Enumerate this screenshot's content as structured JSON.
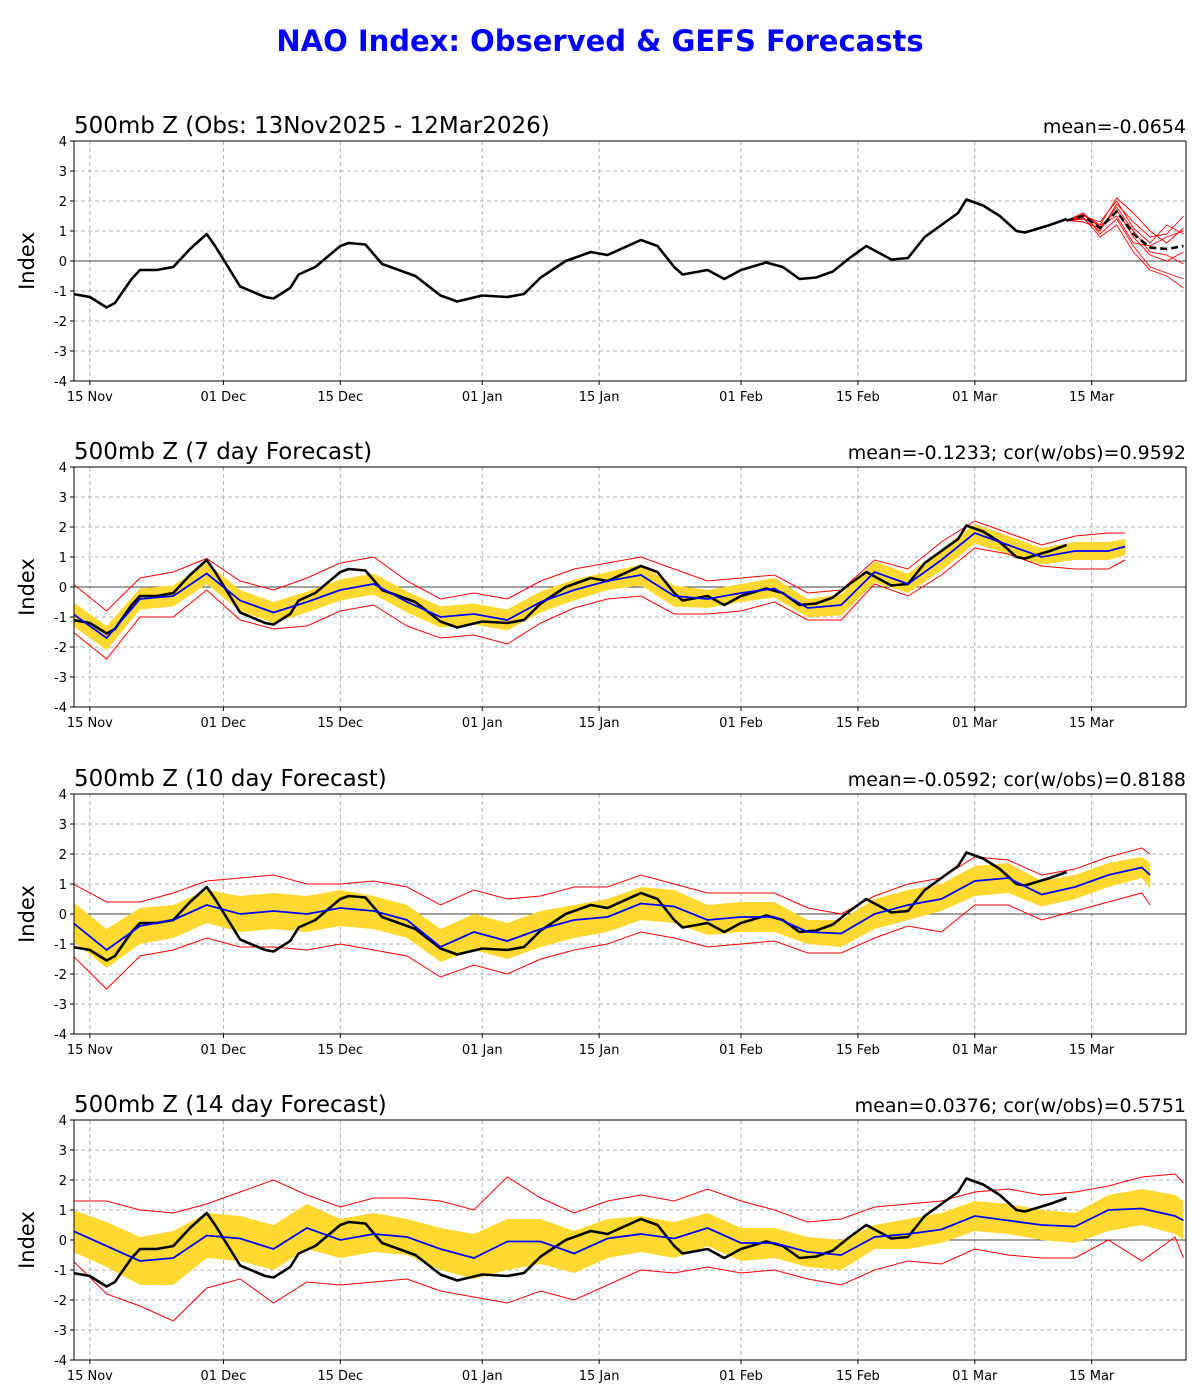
{
  "chart_data": {
    "type": "line",
    "title": "NAO Index: Observed & GEFS Forecasts",
    "colors": {
      "title": "#0000ff",
      "observed": "#000000",
      "forecast_mean": "#0000ff",
      "spread_band": "#ffd92f",
      "min_max": "#ff0000",
      "ensemble": "#ff0000"
    },
    "x_ticks": [
      "15 Nov",
      "01 Dec",
      "15 Dec",
      "01 Jan",
      "15 Jan",
      "01 Feb",
      "15 Feb",
      "01 Mar",
      "15 Mar"
    ],
    "x_tick_dates": [
      "2025-11-15",
      "2025-12-01",
      "2025-12-15",
      "2026-01-01",
      "2026-01-15",
      "2026-02-01",
      "2026-02-15",
      "2026-03-01",
      "2026-03-15"
    ],
    "xlim": [
      "2025-11-13",
      "2026-03-26"
    ],
    "ylim": [
      -4,
      4
    ],
    "y_ticks": [
      -4,
      -3,
      -2,
      -1,
      0,
      1,
      2,
      3,
      4
    ],
    "ylabel": "Index",
    "grid": true,
    "observed": {
      "dates": [
        "2025-11-13",
        "2025-11-15",
        "2025-11-17",
        "2025-11-18",
        "2025-11-20",
        "2025-11-21",
        "2025-11-23",
        "2025-11-25",
        "2025-11-27",
        "2025-11-29",
        "2025-11-30",
        "2025-12-02",
        "2025-12-03",
        "2025-12-06",
        "2025-12-07",
        "2025-12-09",
        "2025-12-10",
        "2025-12-12",
        "2025-12-15",
        "2025-12-16",
        "2025-12-18",
        "2025-12-20",
        "2025-12-22",
        "2025-12-24",
        "2025-12-27",
        "2025-12-29",
        "2026-01-01",
        "2026-01-04",
        "2026-01-06",
        "2026-01-08",
        "2026-01-11",
        "2026-01-14",
        "2026-01-16",
        "2026-01-20",
        "2026-01-22",
        "2026-01-24",
        "2026-01-25",
        "2026-01-28",
        "2026-01-30",
        "2026-02-01",
        "2026-02-04",
        "2026-02-06",
        "2026-02-08",
        "2026-02-10",
        "2026-02-12",
        "2026-02-14",
        "2026-02-16",
        "2026-02-19",
        "2026-02-21",
        "2026-02-23",
        "2026-02-25",
        "2026-02-27",
        "2026-02-28",
        "2026-03-02",
        "2026-03-04",
        "2026-03-06",
        "2026-03-07",
        "2026-03-10",
        "2026-03-12"
      ],
      "values": [
        -1.1,
        -1.2,
        -1.55,
        -1.4,
        -0.6,
        -0.3,
        -0.3,
        -0.2,
        0.4,
        0.9,
        0.5,
        -0.4,
        -0.85,
        -1.2,
        -1.25,
        -0.9,
        -0.45,
        -0.2,
        0.5,
        0.6,
        0.55,
        -0.1,
        -0.3,
        -0.5,
        -1.15,
        -1.35,
        -1.15,
        -1.2,
        -1.1,
        -0.55,
        0.0,
        0.3,
        0.2,
        0.7,
        0.5,
        -0.2,
        -0.45,
        -0.3,
        -0.6,
        -0.3,
        -0.05,
        -0.2,
        -0.6,
        -0.55,
        -0.35,
        0.1,
        0.5,
        0.05,
        0.1,
        0.8,
        1.2,
        1.6,
        2.05,
        1.85,
        1.5,
        1.0,
        0.95,
        1.2,
        1.4
      ]
    },
    "panels": [
      {
        "title": "500mb Z (Obs: 13Nov2025 - 12Mar2026)",
        "stat": "mean=-0.0654",
        "ensemble": {
          "dates": [
            "2026-03-12",
            "2026-03-14",
            "2026-03-16",
            "2026-03-18",
            "2026-03-20",
            "2026-03-22",
            "2026-03-24",
            "2026-03-26"
          ],
          "mean": [
            1.35,
            1.5,
            1.1,
            1.65,
            0.9,
            0.45,
            0.4,
            0.5
          ],
          "members": [
            [
              1.35,
              1.4,
              1.0,
              1.9,
              1.3,
              0.8,
              0.9,
              1.5
            ],
            [
              1.35,
              1.55,
              1.2,
              2.1,
              1.6,
              1.0,
              0.6,
              1.1
            ],
            [
              1.35,
              1.6,
              0.9,
              1.4,
              0.5,
              -0.2,
              -0.4,
              -0.6
            ],
            [
              1.35,
              1.3,
              1.1,
              1.7,
              0.8,
              0.2,
              0.0,
              0.3
            ],
            [
              1.35,
              1.5,
              1.3,
              2.0,
              1.1,
              0.6,
              1.2,
              0.9
            ],
            [
              1.35,
              1.45,
              0.8,
              1.2,
              0.3,
              -0.3,
              -0.5,
              -0.9
            ],
            [
              1.35,
              1.6,
              1.1,
              1.8,
              1.0,
              0.3,
              0.2,
              -0.1
            ],
            [
              1.35,
              1.4,
              1.2,
              1.5,
              0.6,
              0.5,
              0.8,
              1.0
            ]
          ]
        }
      },
      {
        "title": "500mb Z (7 day Forecast)",
        "stat": "mean=-0.1233; cor(w/obs)=0.9592",
        "forecast": {
          "dates": [
            "2025-11-13",
            "2025-11-17",
            "2025-11-21",
            "2025-11-25",
            "2025-11-29",
            "2025-12-03",
            "2025-12-07",
            "2025-12-11",
            "2025-12-15",
            "2025-12-19",
            "2025-12-23",
            "2025-12-27",
            "2025-12-31",
            "2026-01-04",
            "2026-01-08",
            "2026-01-12",
            "2026-01-16",
            "2026-01-20",
            "2026-01-24",
            "2026-01-28",
            "2026-02-01",
            "2026-02-05",
            "2026-02-09",
            "2026-02-13",
            "2026-02-17",
            "2026-02-21",
            "2026-02-25",
            "2026-03-01",
            "2026-03-05",
            "2026-03-09",
            "2026-03-13",
            "2026-03-17",
            "2026-03-19"
          ],
          "mean": [
            -0.9,
            -1.7,
            -0.4,
            -0.3,
            0.45,
            -0.45,
            -0.85,
            -0.5,
            -0.1,
            0.1,
            -0.5,
            -1.0,
            -0.9,
            -1.1,
            -0.5,
            -0.1,
            0.2,
            0.4,
            -0.3,
            -0.4,
            -0.2,
            -0.05,
            -0.7,
            -0.6,
            0.5,
            0.1,
            0.9,
            1.8,
            1.4,
            1.0,
            1.2,
            1.2,
            1.35
          ],
          "band_lo": [
            -1.3,
            -2.1,
            -0.75,
            -0.65,
            0.1,
            -0.8,
            -1.2,
            -0.85,
            -0.45,
            -0.25,
            -0.85,
            -1.35,
            -1.25,
            -1.45,
            -0.85,
            -0.45,
            -0.1,
            0.05,
            -0.65,
            -0.7,
            -0.5,
            -0.35,
            -1.0,
            -0.95,
            0.15,
            -0.2,
            0.55,
            1.45,
            1.1,
            0.75,
            0.9,
            0.9,
            1.05
          ],
          "band_hi": [
            -0.5,
            -1.3,
            -0.05,
            0.05,
            0.8,
            -0.1,
            -0.5,
            -0.15,
            0.25,
            0.45,
            -0.15,
            -0.65,
            -0.55,
            -0.75,
            -0.15,
            0.25,
            0.5,
            0.75,
            0.05,
            -0.1,
            0.1,
            0.3,
            -0.4,
            -0.25,
            0.85,
            0.45,
            1.25,
            2.1,
            1.7,
            1.3,
            1.5,
            1.5,
            1.6
          ],
          "min": [
            -1.5,
            -2.4,
            -1.0,
            -1.0,
            -0.1,
            -1.1,
            -1.4,
            -1.3,
            -0.8,
            -0.6,
            -1.3,
            -1.7,
            -1.6,
            -1.9,
            -1.2,
            -0.7,
            -0.4,
            -0.3,
            -0.9,
            -0.9,
            -0.8,
            -0.5,
            -1.1,
            -1.1,
            0.1,
            -0.3,
            0.4,
            1.3,
            1.1,
            0.7,
            0.6,
            0.6,
            0.9
          ],
          "max": [
            0.1,
            -0.8,
            0.3,
            0.5,
            0.95,
            0.2,
            -0.1,
            0.3,
            0.8,
            1.0,
            0.2,
            -0.4,
            -0.2,
            -0.4,
            0.2,
            0.6,
            0.8,
            1.0,
            0.6,
            0.2,
            0.3,
            0.4,
            -0.2,
            -0.1,
            0.9,
            0.6,
            1.5,
            2.2,
            1.8,
            1.4,
            1.7,
            1.8,
            1.8
          ]
        }
      },
      {
        "title": "500mb Z (10 day Forecast)",
        "stat": "mean=-0.0592; cor(w/obs)=0.8188",
        "forecast": {
          "dates": [
            "2025-11-13",
            "2025-11-17",
            "2025-11-21",
            "2025-11-25",
            "2025-11-29",
            "2025-12-03",
            "2025-12-07",
            "2025-12-11",
            "2025-12-15",
            "2025-12-19",
            "2025-12-23",
            "2025-12-27",
            "2025-12-31",
            "2026-01-04",
            "2026-01-08",
            "2026-01-12",
            "2026-01-16",
            "2026-01-20",
            "2026-01-24",
            "2026-01-28",
            "2026-02-01",
            "2026-02-05",
            "2026-02-09",
            "2026-02-13",
            "2026-02-17",
            "2026-02-21",
            "2026-02-25",
            "2026-03-01",
            "2026-03-05",
            "2026-03-09",
            "2026-03-13",
            "2026-03-17",
            "2026-03-21",
            "2026-03-22"
          ],
          "mean": [
            -0.3,
            -1.2,
            -0.4,
            -0.2,
            0.3,
            0.0,
            0.1,
            0.0,
            0.2,
            0.1,
            -0.2,
            -1.1,
            -0.6,
            -0.9,
            -0.5,
            -0.2,
            -0.1,
            0.35,
            0.25,
            -0.2,
            -0.1,
            -0.1,
            -0.6,
            -0.65,
            0.0,
            0.3,
            0.5,
            1.1,
            1.2,
            0.65,
            0.9,
            1.3,
            1.55,
            1.3
          ],
          "band_lo": [
            -0.9,
            -1.8,
            -1.0,
            -0.8,
            -0.3,
            -0.6,
            -0.5,
            -0.6,
            -0.4,
            -0.5,
            -0.8,
            -1.6,
            -1.2,
            -1.5,
            -1.1,
            -0.8,
            -0.6,
            -0.2,
            -0.3,
            -0.7,
            -0.6,
            -0.6,
            -1.0,
            -1.1,
            -0.5,
            -0.2,
            0.1,
            0.6,
            0.7,
            0.25,
            0.5,
            0.9,
            1.2,
            0.85
          ],
          "band_hi": [
            0.4,
            -0.5,
            0.2,
            0.3,
            0.8,
            0.6,
            0.7,
            0.6,
            0.8,
            0.6,
            0.3,
            -0.5,
            0.0,
            -0.3,
            0.1,
            0.3,
            0.5,
            0.9,
            0.8,
            0.3,
            0.4,
            0.4,
            -0.2,
            -0.2,
            0.5,
            0.8,
            1.0,
            1.6,
            1.7,
            1.1,
            1.3,
            1.7,
            1.9,
            1.7
          ],
          "min": [
            -1.4,
            -2.5,
            -1.4,
            -1.2,
            -0.8,
            -1.1,
            -1.1,
            -1.2,
            -1.0,
            -1.2,
            -1.4,
            -2.1,
            -1.7,
            -2.0,
            -1.5,
            -1.2,
            -1.0,
            -0.6,
            -0.8,
            -1.1,
            -1.0,
            -0.9,
            -1.3,
            -1.3,
            -0.8,
            -0.4,
            -0.6,
            0.3,
            0.3,
            -0.2,
            0.1,
            0.4,
            0.7,
            0.3
          ],
          "max": [
            1.0,
            0.4,
            0.4,
            0.7,
            1.1,
            1.2,
            1.3,
            1.0,
            1.0,
            1.1,
            0.9,
            0.3,
            0.8,
            0.5,
            0.6,
            0.9,
            0.9,
            1.3,
            1.0,
            0.7,
            0.7,
            0.7,
            0.2,
            0.0,
            0.6,
            1.0,
            1.2,
            1.9,
            1.8,
            1.3,
            1.5,
            1.9,
            2.2,
            2.0
          ]
        }
      },
      {
        "title": "500mb Z (14 day Forecast)",
        "stat": "mean=0.0376; cor(w/obs)=0.5751",
        "forecast": {
          "dates": [
            "2025-11-13",
            "2025-11-17",
            "2025-11-21",
            "2025-11-25",
            "2025-11-29",
            "2025-12-03",
            "2025-12-07",
            "2025-12-11",
            "2025-12-15",
            "2025-12-19",
            "2025-12-23",
            "2025-12-27",
            "2025-12-31",
            "2026-01-04",
            "2026-01-08",
            "2026-01-12",
            "2026-01-16",
            "2026-01-20",
            "2026-01-24",
            "2026-01-28",
            "2026-02-01",
            "2026-02-05",
            "2026-02-09",
            "2026-02-13",
            "2026-02-17",
            "2026-02-21",
            "2026-02-25",
            "2026-03-01",
            "2026-03-05",
            "2026-03-09",
            "2026-03-13",
            "2026-03-17",
            "2026-03-21",
            "2026-03-25",
            "2026-03-26"
          ],
          "mean": [
            0.3,
            -0.2,
            -0.7,
            -0.6,
            0.15,
            0.05,
            -0.3,
            0.4,
            0.0,
            0.2,
            0.1,
            -0.3,
            -0.6,
            -0.05,
            -0.05,
            -0.45,
            0.05,
            0.2,
            0.05,
            0.4,
            -0.1,
            -0.1,
            -0.4,
            -0.5,
            0.1,
            0.2,
            0.35,
            0.8,
            0.65,
            0.5,
            0.45,
            1.0,
            1.05,
            0.8,
            0.65
          ],
          "band_lo": [
            -0.4,
            -0.9,
            -1.5,
            -1.5,
            -0.6,
            -0.7,
            -1.0,
            -0.3,
            -0.6,
            -0.4,
            -0.5,
            -1.0,
            -1.3,
            -1.0,
            -0.8,
            -1.1,
            -0.6,
            -0.4,
            -0.6,
            -0.2,
            -0.7,
            -0.6,
            -0.9,
            -1.0,
            -0.3,
            -0.3,
            -0.1,
            0.3,
            0.2,
            0.0,
            -0.1,
            0.3,
            0.5,
            0.2,
            0.0
          ],
          "band_hi": [
            1.0,
            0.6,
            0.1,
            0.3,
            0.9,
            0.8,
            0.5,
            1.2,
            0.7,
            0.9,
            0.7,
            0.4,
            0.2,
            0.7,
            0.7,
            0.3,
            0.7,
            0.8,
            0.6,
            0.9,
            0.4,
            0.4,
            0.1,
            0.0,
            0.5,
            0.7,
            0.9,
            1.3,
            1.2,
            1.0,
            0.9,
            1.5,
            1.7,
            1.5,
            1.3
          ],
          "min": [
            -0.7,
            -1.8,
            -2.2,
            -2.7,
            -1.6,
            -1.3,
            -2.1,
            -1.4,
            -1.5,
            -1.4,
            -1.3,
            -1.7,
            -1.9,
            -2.1,
            -1.7,
            -2.0,
            -1.5,
            -1.0,
            -1.1,
            -0.9,
            -1.1,
            -1.0,
            -1.3,
            -1.5,
            -1.0,
            -0.7,
            -0.8,
            -0.3,
            -0.5,
            -0.6,
            -0.6,
            0.0,
            -0.7,
            0.1,
            -0.6
          ],
          "max": [
            1.3,
            1.3,
            1.0,
            0.9,
            1.2,
            1.6,
            2.0,
            1.5,
            1.1,
            1.4,
            1.4,
            1.3,
            1.0,
            2.1,
            1.4,
            0.9,
            1.3,
            1.5,
            1.3,
            1.7,
            1.3,
            1.0,
            0.6,
            0.7,
            1.1,
            1.2,
            1.3,
            1.6,
            1.7,
            1.5,
            1.6,
            1.8,
            2.1,
            2.2,
            1.9
          ]
        }
      }
    ]
  }
}
